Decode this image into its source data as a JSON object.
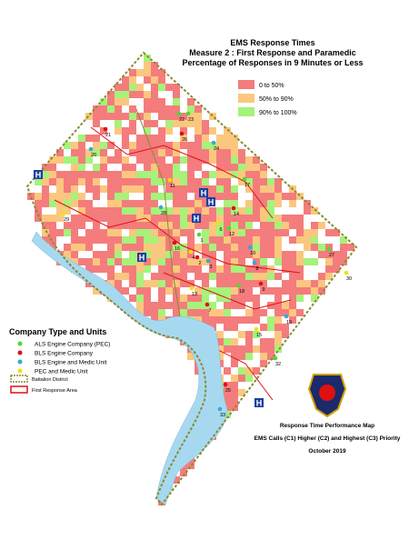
{
  "header": {
    "title": "EMS Response Times",
    "subtitle": "Measure 2 : First Response and Paramedic",
    "subtitle2": "Percentage of Responses in 9 Minutes or Less"
  },
  "response_legend": [
    {
      "label": "0 to 50%",
      "color": "#f47c7c"
    },
    {
      "label": "50% to 90%",
      "color": "#fbc77f"
    },
    {
      "label": "90% to 100%",
      "color": "#a6f27a"
    }
  ],
  "company_legend": {
    "title": "Company Type and Units",
    "items": [
      {
        "label": "ALS Engine Company (PEC)",
        "color": "#44dd33"
      },
      {
        "label": "BLS Engine Company",
        "color": "#e01010"
      },
      {
        "label": "BLS Engine and Medic Unit",
        "color": "#33aadd"
      },
      {
        "label": "PEC and Medic Unit",
        "color": "#f2e200"
      }
    ],
    "lines": [
      {
        "label": "Battalion District",
        "color": "#8a8a30"
      },
      {
        "label": "First Response Area",
        "color": "#e01010"
      }
    ]
  },
  "hospital_label": "H",
  "map_labels": [
    "22",
    "21",
    "20",
    "29",
    "23",
    "26",
    "24",
    "11",
    "17",
    "14",
    "28",
    "6",
    "12",
    "16",
    "10",
    "4",
    "1",
    "2",
    "3",
    "13",
    "18",
    "9",
    "8",
    "30",
    "27",
    "7",
    "19",
    "15",
    "32",
    "25",
    "33"
  ],
  "footer": {
    "line1": "Response Time Performance Map",
    "line2": "EMS Calls (C1) Higher (C2) and Highest (C3) Priority",
    "line3": "October 2019"
  }
}
